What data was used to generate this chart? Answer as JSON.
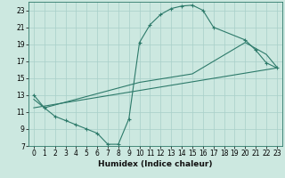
{
  "xlabel": "Humidex (Indice chaleur)",
  "bg_color": "#cce8e0",
  "grid_color": "#a8cfc8",
  "line_color": "#2d7a6a",
  "xlim": [
    -0.5,
    23.5
  ],
  "ylim": [
    7,
    24
  ],
  "xticks": [
    0,
    1,
    2,
    3,
    4,
    5,
    6,
    7,
    8,
    9,
    10,
    11,
    12,
    13,
    14,
    15,
    16,
    17,
    18,
    19,
    20,
    21,
    22,
    23
  ],
  "yticks": [
    7,
    9,
    11,
    13,
    15,
    17,
    19,
    21,
    23
  ],
  "curve1_x": [
    0,
    1,
    2,
    3,
    4,
    5,
    6,
    7,
    8,
    9,
    10,
    11,
    12,
    13,
    14,
    15,
    16,
    17,
    20,
    21,
    22,
    23
  ],
  "curve1_y": [
    13.0,
    11.5,
    10.5,
    10.0,
    9.5,
    9.0,
    8.5,
    7.2,
    7.2,
    10.2,
    19.2,
    21.3,
    22.5,
    23.2,
    23.5,
    23.6,
    23.0,
    21.0,
    19.5,
    18.3,
    16.8,
    16.2
  ],
  "line2_x": [
    0,
    1,
    10,
    15,
    20,
    21,
    22,
    23
  ],
  "line2_y": [
    12.5,
    11.5,
    14.5,
    15.5,
    19.2,
    18.5,
    17.8,
    16.3
  ],
  "line3_x": [
    0,
    23
  ],
  "line3_y": [
    11.5,
    16.2
  ]
}
